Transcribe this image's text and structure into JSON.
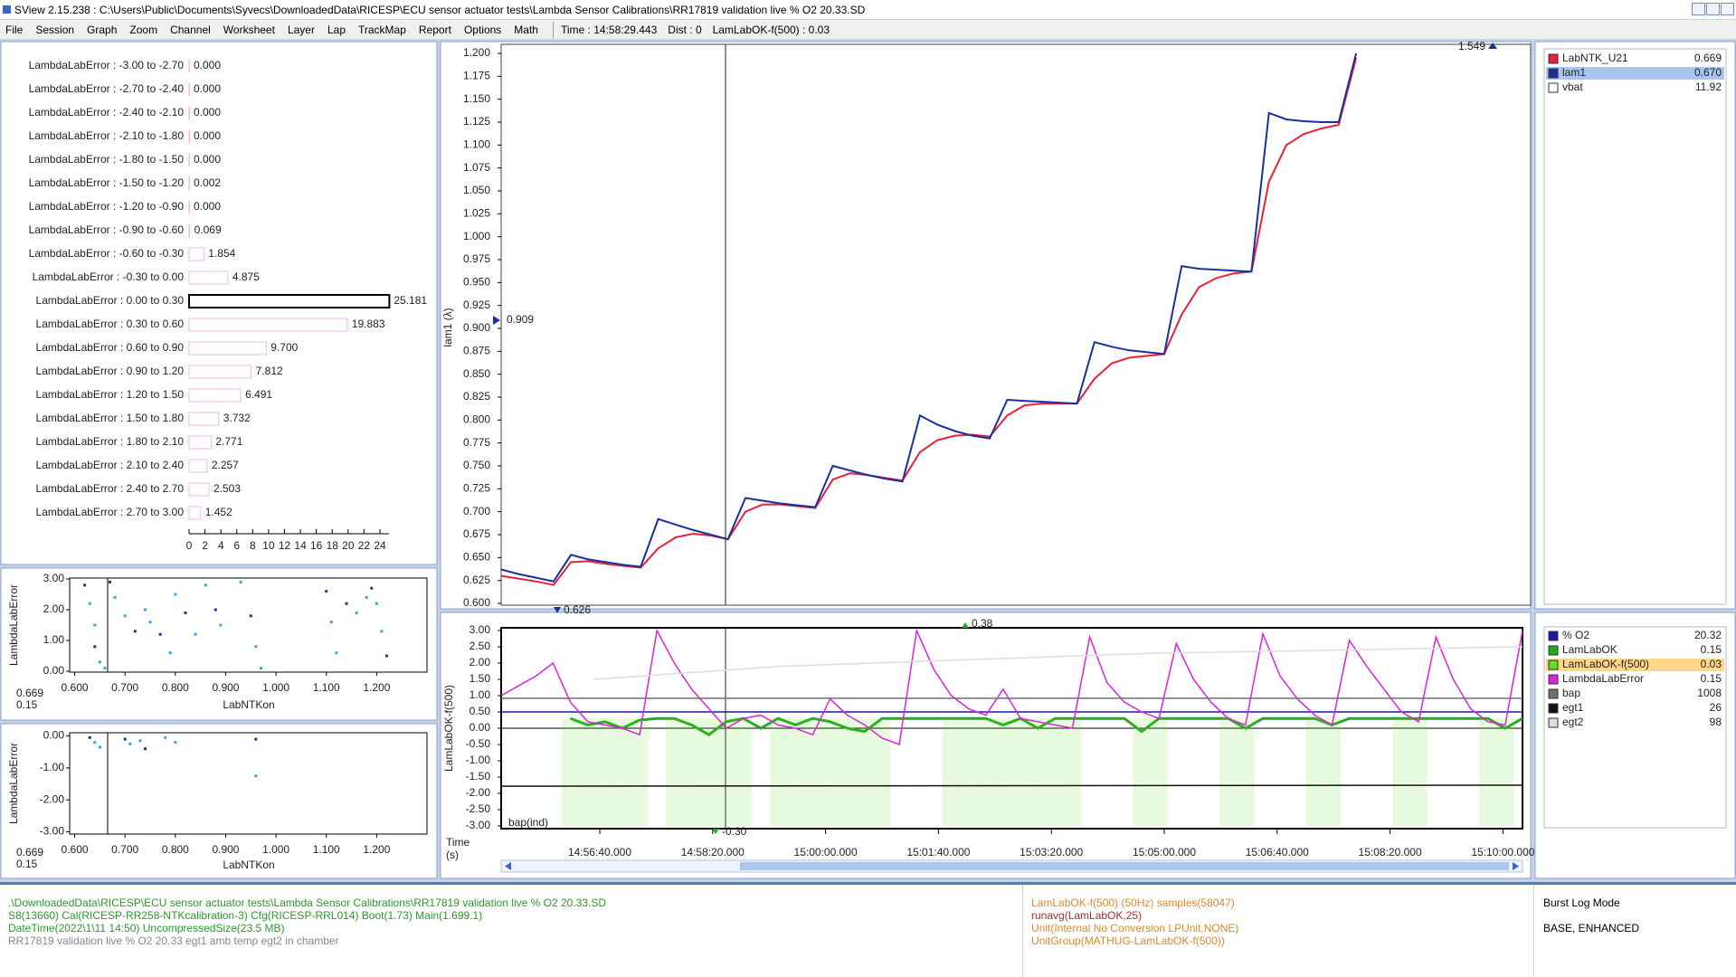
{
  "window": {
    "title": "SView 2.15.238  :  C:\\Users\\Public\\Documents\\Syvecs\\DownloadedData\\RICESP\\ECU sensor actuator tests\\Lambda Sensor Calibrations\\RR17819 validation live % O2 20.33.SD"
  },
  "menu": {
    "items": [
      "File",
      "Session",
      "Graph",
      "Zoom",
      "Channel",
      "Worksheet",
      "Layer",
      "Lap",
      "TrackMap",
      "Report",
      "Options",
      "Math"
    ],
    "readouts": [
      "Time : 14:58:29.443",
      "Dist : 0",
      "LamLabOK-f(500) : 0.03"
    ]
  },
  "histogram": {
    "type": "bar",
    "categories": [
      "LambdaLabError : -3.00 to -2.70",
      "LambdaLabError : -2.70 to -2.40",
      "LambdaLabError : -2.40 to -2.10",
      "LambdaLabError : -2.10 to -1.80",
      "LambdaLabError : -1.80 to -1.50",
      "LambdaLabError : -1.50 to -1.20",
      "LambdaLabError : -1.20 to -0.90",
      "LambdaLabError : -0.90 to -0.60",
      "LambdaLabError : -0.60 to -0.30",
      "LambdaLabError : -0.30 to 0.00",
      "LambdaLabError : 0.00 to 0.30",
      "LambdaLabError : 0.30 to 0.60",
      "LambdaLabError : 0.60 to 0.90",
      "LambdaLabError : 0.90 to 1.20",
      "LambdaLabError : 1.20 to 1.50",
      "LambdaLabError : 1.50 to 1.80",
      "LambdaLabError : 1.80 to 2.10",
      "LambdaLabError : 2.10 to 2.40",
      "LambdaLabError : 2.40 to 2.70",
      "LambdaLabError : 2.70 to 3.00"
    ],
    "values": [
      0,
      0,
      0,
      0,
      0,
      0.002,
      0,
      0.069,
      1.854,
      4.875,
      25.181,
      19.883,
      9.7,
      7.812,
      6.491,
      3.732,
      2.771,
      2.257,
      2.503,
      1.452
    ],
    "value_labels": [
      "0.000",
      "0.000",
      "0.000",
      "0.000",
      "0.000",
      "0.002",
      "0.000",
      "0.069",
      "1.854",
      "4.875",
      "25.181",
      "19.883",
      "9.700",
      "7.812",
      "6.491",
      "3.732",
      "2.771",
      "2.257",
      "2.503",
      "1.452"
    ],
    "selected": 10,
    "xlim": [
      0,
      24
    ],
    "xticks": [
      0,
      2,
      4,
      6,
      8,
      10,
      12,
      14,
      16,
      18,
      20,
      22,
      24
    ]
  },
  "scatter_upper": {
    "type": "scatter",
    "x_label": "LabNTKon",
    "y_label": "LambdaLabError",
    "color": "#3aa6d8",
    "xlim": [
      0.59,
      1.3
    ],
    "ylim": [
      -0.03,
      3.03
    ],
    "xticks": [
      {
        "value": 0.6,
        "label": "0.600"
      },
      {
        "value": 0.7,
        "label": "0.700"
      },
      {
        "value": 0.8,
        "label": "0.800"
      },
      {
        "value": 0.9,
        "label": "0.900"
      },
      {
        "value": 1.0,
        "label": "1.000"
      },
      {
        "value": 1.1,
        "label": "1.100"
      },
      {
        "value": 1.2,
        "label": "1.200"
      }
    ],
    "yticks": [
      {
        "value": 0,
        "label": "0.00"
      },
      {
        "value": 1,
        "label": "1.00"
      },
      {
        "value": 2,
        "label": "2.00"
      },
      {
        "value": 3,
        "label": "3.00"
      }
    ],
    "x": [
      0.62,
      0.63,
      0.64,
      0.64,
      0.65,
      0.66,
      0.67,
      0.68,
      0.7,
      0.72,
      0.74,
      0.75,
      0.77,
      0.79,
      0.8,
      0.82,
      0.84,
      0.86,
      0.88,
      0.89,
      0.93,
      0.95,
      0.96,
      0.97,
      1.1,
      1.11,
      1.12,
      1.14,
      1.16,
      1.18,
      1.19,
      1.2,
      1.21,
      1.22
    ],
    "y": [
      2.8,
      2.2,
      1.5,
      0.8,
      0.3,
      0.1,
      2.9,
      2.4,
      1.8,
      1.3,
      2.0,
      1.6,
      1.2,
      0.6,
      2.5,
      1.9,
      1.2,
      2.8,
      2.0,
      1.5,
      2.9,
      1.8,
      0.8,
      0.1,
      2.6,
      1.6,
      0.6,
      2.2,
      1.9,
      2.4,
      2.7,
      2.2,
      1.3,
      0.5
    ],
    "readouts": [
      "0.669",
      "0.15"
    ]
  },
  "scatter_lower": {
    "type": "scatter",
    "x_label": "LabNTKon",
    "y_label": "LambdaLabError",
    "color": "#3aa6d8",
    "xlim": [
      0.59,
      1.3
    ],
    "ylim": [
      -3.07,
      0.1
    ],
    "xticks": [
      {
        "value": 0.6,
        "label": "0.600"
      },
      {
        "value": 0.7,
        "label": "0.700"
      },
      {
        "value": 0.8,
        "label": "0.800"
      },
      {
        "value": 0.9,
        "label": "0.900"
      },
      {
        "value": 1.0,
        "label": "1.000"
      },
      {
        "value": 1.1,
        "label": "1.100"
      },
      {
        "value": 1.2,
        "label": "1.200"
      }
    ],
    "yticks": [
      {
        "value": 0,
        "label": "0.00"
      },
      {
        "value": -1,
        "label": "-1.00"
      },
      {
        "value": -2,
        "label": "-2.00"
      },
      {
        "value": -3,
        "label": "-3.00"
      }
    ],
    "x": [
      0.63,
      0.64,
      0.65,
      0.7,
      0.71,
      0.73,
      0.74,
      0.78,
      0.8,
      0.96,
      0.96
    ],
    "y": [
      -0.05,
      -0.2,
      -0.35,
      -0.1,
      -0.25,
      -0.15,
      -0.4,
      -0.05,
      -0.2,
      -0.1,
      -1.25
    ],
    "readouts": [
      "0.669",
      "0.15"
    ]
  },
  "lambda_chart": {
    "type": "line",
    "y_label": "lam1 (λ)",
    "ylim": [
      0.6,
      1.2
    ],
    "yticks": [
      {
        "value": 0.6,
        "label": "0.600"
      },
      0.625,
      {
        "value": 0.65,
        "label": "0.650"
      },
      0.675,
      {
        "value": 0.7,
        "label": "0.700"
      },
      0.725,
      {
        "value": 0.75,
        "label": "0.750"
      },
      0.775,
      {
        "value": 0.8,
        "label": "0.800"
      },
      0.825,
      {
        "value": 0.85,
        "label": "0.850"
      },
      0.875,
      {
        "value": 0.9,
        "label": "0.900"
      },
      0.925,
      {
        "value": 0.95,
        "label": "0.950"
      },
      0.975,
      {
        "value": 1.0,
        "label": "1.000"
      },
      1.025,
      {
        "value": 1.05,
        "label": "1.050"
      },
      1.075,
      {
        "value": 1.1,
        "label": "1.100"
      },
      1.125,
      {
        "value": 1.15,
        "label": "1.150"
      },
      1.175,
      {
        "value": 1.2,
        "label": "1.200"
      }
    ],
    "markers": [
      "0.909",
      "0.626",
      "1.549"
    ],
    "series": [
      {
        "name": "LabNTK_U21",
        "color": "#e8213a",
        "readout": "0.669",
        "values": [
          0.63,
          0.627,
          0.624,
          0.62,
          0.645,
          0.646,
          0.643,
          0.641,
          0.639,
          0.66,
          0.672,
          0.676,
          0.674,
          0.67,
          0.7,
          0.708,
          0.708,
          0.706,
          0.704,
          0.735,
          0.742,
          0.74,
          0.737,
          0.734,
          0.765,
          0.778,
          0.783,
          0.784,
          0.782,
          0.805,
          0.816,
          0.818,
          0.818,
          0.818,
          0.845,
          0.862,
          0.868,
          0.87,
          0.872,
          0.915,
          0.945,
          0.955,
          0.96,
          0.962,
          1.06,
          1.1,
          1.112,
          1.118,
          1.122,
          1.195,
          null,
          null,
          null,
          null,
          null,
          null,
          null,
          null,
          null,
          null
        ]
      },
      {
        "name": "lam1",
        "color": "#1a2fa0",
        "readout": "0.670",
        "selected": true,
        "values": [
          0.637,
          0.632,
          0.628,
          0.624,
          0.653,
          0.648,
          0.645,
          0.642,
          0.64,
          0.692,
          0.686,
          0.68,
          0.675,
          0.67,
          0.715,
          0.712,
          0.709,
          0.707,
          0.705,
          0.75,
          0.745,
          0.74,
          0.736,
          0.733,
          0.805,
          0.795,
          0.788,
          0.783,
          0.78,
          0.822,
          0.821,
          0.82,
          0.819,
          0.818,
          0.885,
          0.88,
          0.876,
          0.874,
          0.872,
          0.968,
          0.965,
          0.964,
          0.963,
          0.962,
          1.135,
          1.128,
          1.126,
          1.125,
          1.125,
          1.2,
          null,
          null,
          null,
          null,
          null,
          null,
          null,
          null,
          null,
          null
        ]
      }
    ],
    "extra_channels": [
      {
        "name": "vbat",
        "color": "#ffffff",
        "readout": "11.92"
      }
    ]
  },
  "error_chart": {
    "type": "line",
    "y_label": "LamLabOK-f(500)",
    "note": "bap(ind)",
    "ylim": [
      -3,
      3
    ],
    "yticks": [
      {
        "value": 3,
        "label": "3.00"
      },
      {
        "value": 2.5,
        "label": "2.50"
      },
      {
        "value": 2,
        "label": "2.00"
      },
      {
        "value": 1.5,
        "label": "1.50"
      },
      {
        "value": 1,
        "label": "1.00"
      },
      {
        "value": 0.5,
        "label": "0.50"
      },
      {
        "value": 0,
        "label": "0.00"
      },
      {
        "value": -0.5,
        "label": "-0.50"
      },
      {
        "value": -1,
        "label": "-1.00"
      },
      {
        "value": -1.5,
        "label": "-1.50"
      },
      {
        "value": -2,
        "label": "-2.00"
      },
      {
        "value": -2.5,
        "label": "-2.50"
      },
      {
        "value": -3,
        "label": "-3.00"
      }
    ],
    "markers": [
      "0.38",
      "-0.30"
    ],
    "series": [
      {
        "name": "% O2",
        "color": "#1a1aa0",
        "readout": "20.32",
        "style": "line",
        "values": [
          0.5,
          0.5
        ]
      },
      {
        "name": "LamLabOK",
        "color": "#22aa22",
        "readout": "0.15",
        "style": "line",
        "values": [
          null,
          null,
          null,
          null,
          0.3,
          0.1,
          0.2,
          0.0,
          0.25,
          0.3,
          0.3,
          0.1,
          -0.2,
          0.2,
          0.3,
          0.0,
          0.3,
          0.1,
          0.3,
          0.2,
          0.0,
          -0.1,
          0.3,
          0.3,
          0.3,
          0.3,
          0.3,
          0.3,
          0.3,
          0.1,
          0.3,
          0.0,
          0.3,
          0.3,
          0.3,
          0.3,
          0.3,
          -0.1,
          0.3,
          0.3,
          0.3,
          0.3,
          0.3,
          0.0,
          0.3,
          0.3,
          0.3,
          0.3,
          0.1,
          0.3,
          0.3,
          0.3,
          0.3,
          0.3,
          0.3,
          0.3,
          0.3,
          0.3,
          0.0,
          0.3
        ]
      },
      {
        "name": "LamLabOK-f(500)",
        "color": "#66dd22",
        "readout": "0.03",
        "style": "area",
        "selected": true,
        "values": [
          null,
          null,
          null,
          null,
          0.3,
          0.3,
          0.3,
          0.3,
          0.3,
          null,
          0.3,
          0.3,
          0.3,
          0.3,
          0.3,
          null,
          0.3,
          0.3,
          0.3,
          0.3,
          0.3,
          0.3,
          0.3,
          null,
          null,
          null,
          0.3,
          0.3,
          0.3,
          0.3,
          0.3,
          0.3,
          0.3,
          0.3,
          null,
          null,
          null,
          0.3,
          0.3,
          null,
          null,
          null,
          0.3,
          0.3,
          null,
          null,
          null,
          0.3,
          0.3,
          null,
          null,
          null,
          0.3,
          0.3,
          null,
          null,
          null,
          0.3,
          0.3,
          null
        ]
      },
      {
        "name": "LambdaLabError",
        "color": "#dd22dd",
        "readout": "0.15",
        "style": "line",
        "values": [
          1.0,
          1.3,
          1.6,
          2.0,
          0.8,
          0.2,
          0.1,
          0.0,
          -0.2,
          3.0,
          2.0,
          1.2,
          0.6,
          0.0,
          0.3,
          0.4,
          0.1,
          0.0,
          -0.2,
          0.9,
          0.4,
          0.1,
          -0.3,
          -0.5,
          3.0,
          1.8,
          1.0,
          0.6,
          0.4,
          1.2,
          0.3,
          0.2,
          0.1,
          0.0,
          2.8,
          1.4,
          0.8,
          0.5,
          0.3,
          2.6,
          1.5,
          0.8,
          0.3,
          0.1,
          2.9,
          1.6,
          0.9,
          0.4,
          0.1,
          2.7,
          1.9,
          1.2,
          0.5,
          0.2,
          2.8,
          1.5,
          0.6,
          0.2,
          0.1,
          3.0
        ]
      },
      {
        "name": "bap",
        "color": "#707070",
        "readout": "1008",
        "style": "line",
        "values": [
          0.92,
          0.92
        ]
      },
      {
        "name": "egt1",
        "color": "#111111",
        "readout": "26",
        "style": "line",
        "values": [
          -1.78,
          -1.75
        ]
      },
      {
        "name": "egt2",
        "color": "#dddddd",
        "readout": "98",
        "style": "line",
        "values": [
          null,
          1.5,
          1.7,
          1.9,
          2.0,
          2.1,
          2.2,
          2.3,
          2.35,
          2.4,
          2.45,
          2.5
        ]
      }
    ]
  },
  "time_axis": {
    "label": [
      "Time",
      "(s)"
    ],
    "ticks": [
      "14:56:40.000",
      "14:58:20.000",
      "15:00:00.000",
      "15:01:40.000",
      "15:03:20.000",
      "15:05:00.000",
      "15:06:40.000",
      "15:08:20.000",
      "15:10:00.000"
    ]
  },
  "status": {
    "file_info": [
      {
        "text": ".\\DownloadedData\\RICESP\\ECU sensor actuator tests\\Lambda Sensor Calibrations\\RR17819 validation live % O2 20.33.SD",
        "color": "#2a9a2a"
      },
      {
        "text": "S8(13660) Cal(RICESP-RR258-NTKcalibration-3) Cfg(RICESP-RRL014) Boot(1.73) Main(1.699.1)",
        "color": "#2a9a2a"
      },
      {
        "text": "DateTime(2022\\1\\11 14:50) UncompressedSize(23.5 MB)",
        "color": "#2a9a2a"
      },
      {
        "text": "RR17819 validation live % O2 20.33 egt1 amb temp egt2 in chamber",
        "color": "#888888"
      }
    ],
    "channel_info": [
      {
        "text": "LamLabOK-f(500) (50Hz) samples(58047)",
        "color": "#e08a2a"
      },
      {
        "text": "runavg(LamLabOK,25)",
        "color": "#a03030"
      },
      {
        "text": "Unit(Internal No Conversion LPUnit,NONE)",
        "color": "#e08a2a"
      },
      {
        "text": "UnitGroup(MATHUG-LamLabOK-f(500))",
        "color": "#e08a2a"
      }
    ],
    "log_mode": [
      "Burst Log Mode",
      "BASE, ENHANCED"
    ]
  }
}
